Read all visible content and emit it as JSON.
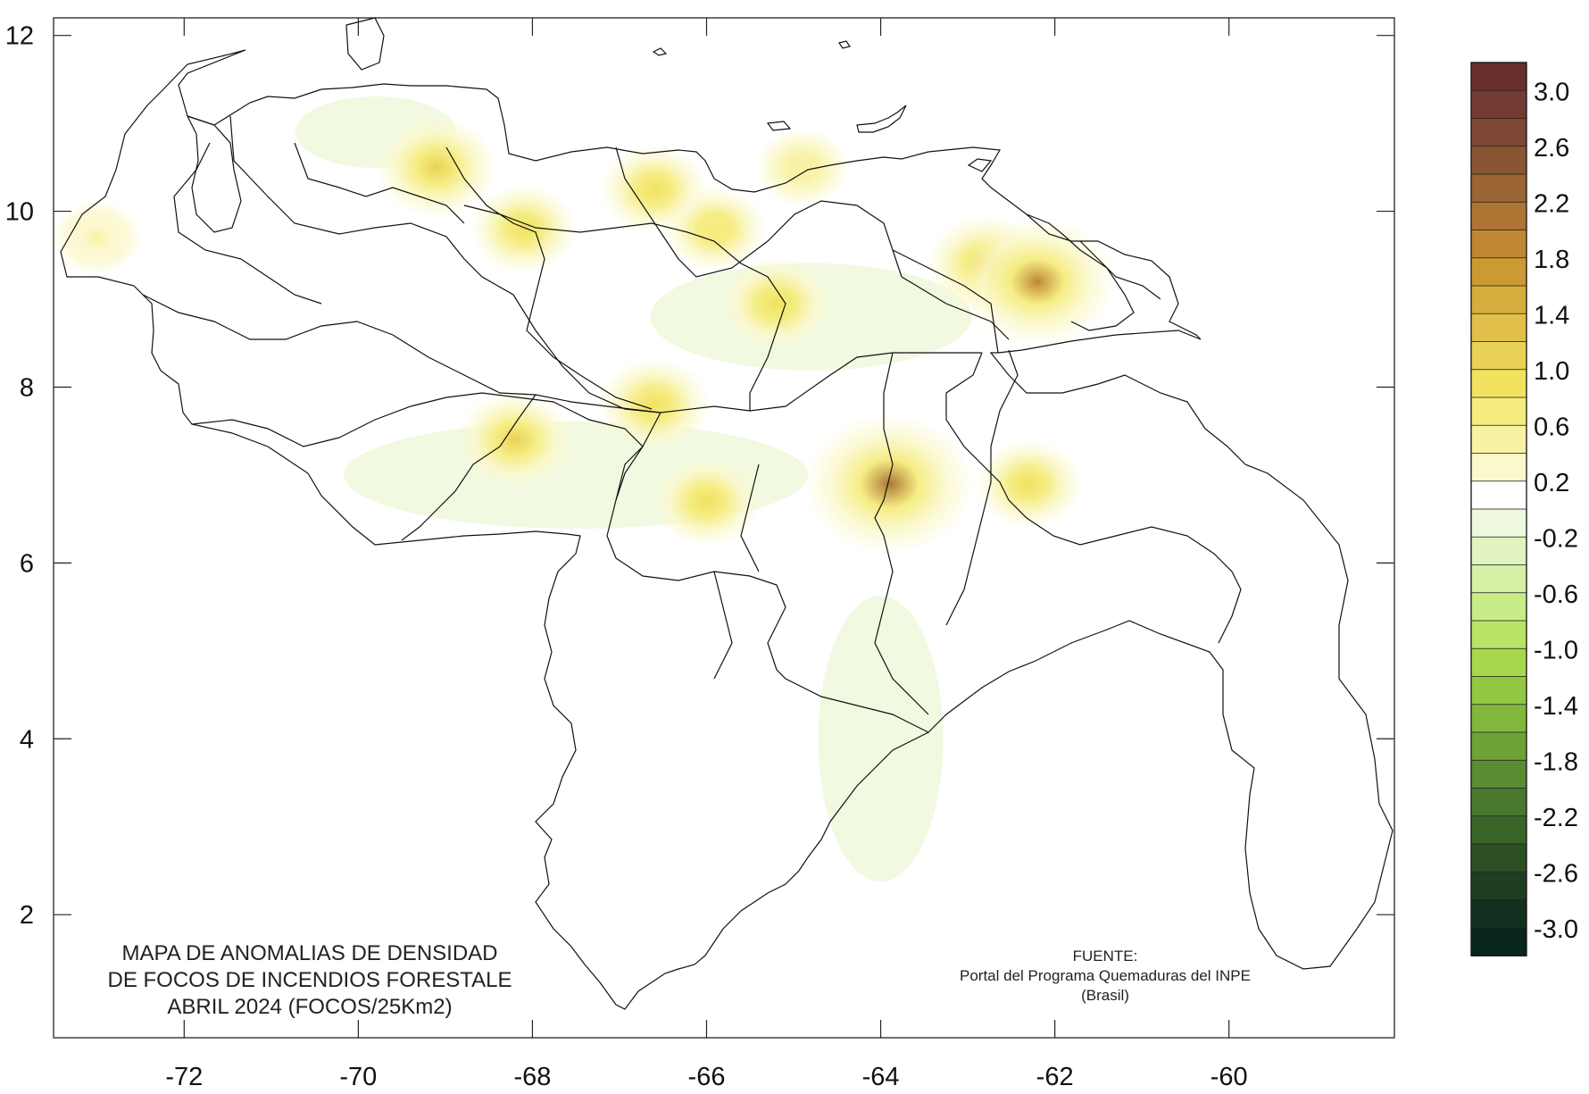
{
  "map": {
    "title_lines": [
      "MAPA DE ANOMALIAS DE DENSIDAD",
      "DE FOCOS DE INCENDIOS FORESTALE",
      "ABRIL 2024 (FOCOS/25Km2)"
    ],
    "source_lines": [
      "FUENTE:",
      "Portal del Programa Quemaduras del INPE",
      "(Brasil)"
    ],
    "x_ticks": [
      "-72",
      "-70",
      "-68",
      "-66",
      "-64",
      "-62",
      "-60"
    ],
    "y_ticks": [
      "12",
      "10",
      "8",
      "6",
      "4",
      "2"
    ],
    "x_tick_values": [
      -72,
      -70,
      -68,
      -66,
      -64,
      -62,
      -60
    ],
    "y_tick_values": [
      12,
      10,
      8,
      6,
      4,
      2
    ],
    "lon_range": [
      -73.5,
      -58.1
    ],
    "lat_range": [
      0.6,
      12.2
    ]
  },
  "colorbar": {
    "labels": [
      "3.0",
      "2.6",
      "2.2",
      "1.8",
      "1.4",
      "1.0",
      "0.6",
      "0.2",
      "-0.2",
      "-0.6",
      "-1.0",
      "-1.4",
      "-1.8",
      "-2.2",
      "-2.6",
      "-3.0"
    ],
    "colors": [
      "#6b2e2e",
      "#743a33",
      "#7d4733",
      "#8a5533",
      "#9a6433",
      "#ad7533",
      "#bf8733",
      "#cc9a33",
      "#d6ad3c",
      "#e0c04a",
      "#ead256",
      "#f2e260",
      "#f5ec7e",
      "#f8f2a4",
      "#fbf8cc",
      "#ffffff",
      "#eef8dc",
      "#e2f4c2",
      "#d6f0a6",
      "#c8ec88",
      "#b8e466",
      "#a6d84e",
      "#94c842",
      "#82b63c",
      "#6ea236",
      "#5a8c32",
      "#4a782e",
      "#3a6428",
      "#2c5024",
      "#1e3e22",
      "#123020",
      "#08261e"
    ]
  },
  "hotspots": [
    {
      "lon": -69.1,
      "lat": 10.5,
      "value": 1.2
    },
    {
      "lon": -66.6,
      "lat": 10.25,
      "value": 0.9
    },
    {
      "lon": -68.1,
      "lat": 9.8,
      "value": 0.9
    },
    {
      "lon": -65.9,
      "lat": 9.8,
      "value": 0.8
    },
    {
      "lon": -65.2,
      "lat": 8.95,
      "value": 1.0
    },
    {
      "lon": -62.8,
      "lat": 9.4,
      "value": 1.1
    },
    {
      "lon": -62.2,
      "lat": 9.2,
      "value": 1.9
    },
    {
      "lon": -66.6,
      "lat": 7.8,
      "value": 1.0
    },
    {
      "lon": -68.2,
      "lat": 7.4,
      "value": 1.1
    },
    {
      "lon": -66.0,
      "lat": 6.7,
      "value": 0.9
    },
    {
      "lon": -63.9,
      "lat": 6.9,
      "value": 2.2
    },
    {
      "lon": -62.3,
      "lat": 6.9,
      "value": 0.9
    },
    {
      "lon": -64.9,
      "lat": 10.5,
      "value": 0.6
    },
    {
      "lon": -73.0,
      "lat": 9.7,
      "value": 0.5
    }
  ]
}
